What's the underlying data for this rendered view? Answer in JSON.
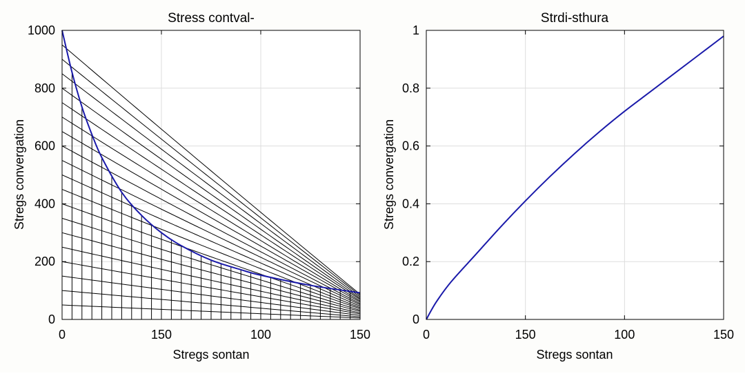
{
  "chart_data": [
    {
      "type": "line",
      "title": "Stress contval-",
      "xlabel": "Stregs sontan",
      "ylabel": "Stregs convergation",
      "x_tick_labels": [
        "0",
        "150",
        "100",
        "150"
      ],
      "y_tick_labels": [
        "0",
        "200",
        "400",
        "600",
        "800",
        "1000"
      ],
      "xlim": [
        0,
        3
      ],
      "ylim": [
        0,
        1000
      ],
      "grid": true,
      "legend": "none",
      "mesh": {
        "x": [
          0,
          0.1,
          0.2,
          0.3,
          0.4,
          0.5,
          0.6,
          0.7,
          0.8,
          0.9,
          1.0,
          1.1,
          1.2,
          1.3,
          1.4,
          1.5,
          1.6,
          1.7,
          1.8,
          1.9,
          2.0,
          2.1,
          2.2,
          2.3,
          2.4,
          2.5,
          2.6,
          2.7,
          2.8,
          2.9,
          3.0
        ],
        "curve_start_values": [
          50,
          100,
          150,
          200,
          250,
          300,
          350,
          400,
          450,
          500,
          550,
          600,
          650,
          700,
          750,
          800,
          850,
          900,
          950
        ],
        "curve_end_values": [
          5,
          9,
          14,
          19,
          23,
          28,
          32,
          37,
          41,
          46,
          51,
          55,
          60,
          64,
          69,
          73,
          78,
          83,
          87
        ]
      },
      "series": [
        {
          "color": "#1a1aaa",
          "x": [
            0,
            0.1,
            0.2,
            0.3,
            0.4,
            0.6,
            0.8,
            1.0,
            1.2,
            1.5,
            1.8,
            2.0,
            2.5,
            3.0
          ],
          "y": [
            1000,
            855,
            735,
            640,
            560,
            440,
            360,
            300,
            255,
            205,
            172,
            153,
            118,
            92
          ]
        }
      ],
      "line_color": "#000000"
    },
    {
      "type": "line",
      "title": "Strdi-sthura",
      "xlabel": "Stregs sontan",
      "ylabel": "Stregs convergation",
      "x_tick_labels": [
        "0",
        "150",
        "100",
        "150"
      ],
      "y_tick_labels": [
        "0",
        "0.2",
        "0.4",
        "0.6",
        "0.8",
        "1"
      ],
      "xlim": [
        0,
        3
      ],
      "ylim": [
        0,
        1
      ],
      "grid": true,
      "legend": "none",
      "series": [
        {
          "color": "#1a1aaa",
          "x": [
            0,
            0.1,
            0.25,
            0.5,
            0.75,
            1.0,
            1.25,
            1.5,
            1.75,
            2.0,
            2.25,
            2.5,
            2.75,
            3.0
          ],
          "y": [
            0,
            0.06,
            0.13,
            0.225,
            0.32,
            0.41,
            0.495,
            0.575,
            0.65,
            0.72,
            0.785,
            0.85,
            0.915,
            0.98
          ]
        }
      ]
    }
  ]
}
